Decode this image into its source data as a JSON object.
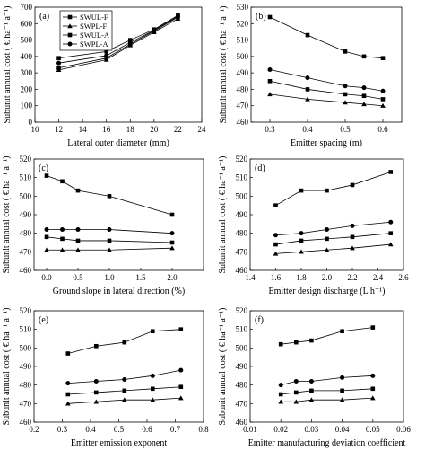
{
  "legend": [
    "SWUL-F",
    "SWPL-F",
    "SWUL-A",
    "SWPL-A"
  ],
  "chart_data": [
    {
      "type": "line",
      "panel": "(a)",
      "xlabel": "Lateral outer diameter (mm)",
      "ylabel": "Subunit annual cost ( € ha⁻¹ a⁻¹)",
      "xlim": [
        10,
        24
      ],
      "ylim": [
        0,
        700
      ],
      "xticks": [
        10,
        12,
        14,
        16,
        18,
        20,
        22,
        24
      ],
      "yticks": [
        0,
        100,
        200,
        300,
        400,
        500,
        600,
        700
      ],
      "legend_position": "top-left",
      "series": [
        {
          "name": "SWUL-F",
          "marker": "square",
          "x": [
            12,
            16,
            18,
            20,
            22
          ],
          "y": [
            330,
            390,
            475,
            555,
            640
          ]
        },
        {
          "name": "SWPL-F",
          "marker": "triangle",
          "x": [
            12,
            16,
            18,
            20,
            22
          ],
          "y": [
            318,
            380,
            468,
            548,
            630
          ]
        },
        {
          "name": "SWUL-A",
          "marker": "square",
          "x": [
            12,
            16,
            18,
            20,
            22
          ],
          "y": [
            390,
            430,
            500,
            565,
            650
          ]
        },
        {
          "name": "SWPL-A",
          "marker": "circle",
          "x": [
            12,
            16,
            18,
            20,
            22
          ],
          "y": [
            360,
            405,
            485,
            560,
            645
          ]
        }
      ]
    },
    {
      "type": "line",
      "panel": "(b)",
      "xlabel": "Emitter spacing (m)",
      "ylabel": "Subunit annual cost ( € ha⁻¹ a⁻¹)",
      "xlim": [
        0.25,
        0.65
      ],
      "ylim": [
        460,
        530
      ],
      "xticks": [
        0.3,
        0.4,
        0.5,
        0.6
      ],
      "yticks": [
        460,
        470,
        480,
        490,
        500,
        510,
        520,
        530
      ],
      "series": [
        {
          "name": "SWUL-F",
          "marker": "square",
          "x": [
            0.3,
            0.4,
            0.5,
            0.55,
            0.6
          ],
          "y": [
            485,
            480,
            477,
            476,
            474
          ]
        },
        {
          "name": "SWPL-F",
          "marker": "triangle",
          "x": [
            0.3,
            0.4,
            0.5,
            0.55,
            0.6
          ],
          "y": [
            477,
            474,
            472,
            471,
            470
          ]
        },
        {
          "name": "SWUL-A",
          "marker": "square",
          "x": [
            0.3,
            0.4,
            0.5,
            0.55,
            0.6
          ],
          "y": [
            524,
            513,
            503,
            500,
            499
          ]
        },
        {
          "name": "SWPL-A",
          "marker": "circle",
          "x": [
            0.3,
            0.4,
            0.5,
            0.55,
            0.6
          ],
          "y": [
            492,
            487,
            482,
            481,
            479
          ]
        }
      ]
    },
    {
      "type": "line",
      "panel": "(c)",
      "xlabel": "Ground slope in lateral direction (%)",
      "ylabel": "Subunit annual cost ( € ha⁻¹ a⁻¹)",
      "xlim": [
        -0.2,
        2.5
      ],
      "ylim": [
        460,
        520
      ],
      "xticks": [
        0.0,
        0.5,
        1.0,
        1.5,
        2.0
      ],
      "yticks": [
        460,
        470,
        480,
        490,
        500,
        510,
        520
      ],
      "series": [
        {
          "name": "SWUL-F",
          "marker": "square",
          "x": [
            0,
            0.25,
            0.5,
            1.0,
            2.0
          ],
          "y": [
            478,
            477,
            476,
            476,
            475
          ]
        },
        {
          "name": "SWPL-F",
          "marker": "triangle",
          "x": [
            0,
            0.25,
            0.5,
            1.0,
            2.0
          ],
          "y": [
            471,
            471,
            471,
            471,
            472
          ]
        },
        {
          "name": "SWUL-A",
          "marker": "square",
          "x": [
            0,
            0.25,
            0.5,
            1.0,
            2.0
          ],
          "y": [
            511,
            508,
            503,
            500,
            490
          ]
        },
        {
          "name": "SWPL-A",
          "marker": "circle",
          "x": [
            0,
            0.25,
            0.5,
            1.0,
            2.0
          ],
          "y": [
            482,
            482,
            482,
            482,
            480
          ]
        }
      ]
    },
    {
      "type": "line",
      "panel": "(d)",
      "xlabel": "Emitter design discharge (L h⁻¹)",
      "ylabel": "Subunit annual cost ( € ha⁻¹ a⁻¹)",
      "xlim": [
        1.4,
        2.6
      ],
      "ylim": [
        460,
        520
      ],
      "xticks": [
        1.4,
        1.6,
        1.8,
        2.0,
        2.2,
        2.4,
        2.6
      ],
      "yticks": [
        460,
        470,
        480,
        490,
        500,
        510,
        520
      ],
      "series": [
        {
          "name": "SWUL-F",
          "marker": "square",
          "x": [
            1.6,
            1.8,
            2.0,
            2.2,
            2.5
          ],
          "y": [
            474,
            476,
            477,
            478,
            480
          ]
        },
        {
          "name": "SWPL-F",
          "marker": "triangle",
          "x": [
            1.6,
            1.8,
            2.0,
            2.2,
            2.5
          ],
          "y": [
            469,
            470,
            471,
            472,
            474
          ]
        },
        {
          "name": "SWUL-A",
          "marker": "square",
          "x": [
            1.6,
            1.8,
            2.0,
            2.2,
            2.5
          ],
          "y": [
            495,
            503,
            503,
            506,
            513
          ]
        },
        {
          "name": "SWPL-A",
          "marker": "circle",
          "x": [
            1.6,
            1.8,
            2.0,
            2.2,
            2.5
          ],
          "y": [
            479,
            480,
            482,
            484,
            486
          ]
        }
      ]
    },
    {
      "type": "line",
      "panel": "(e)",
      "xlabel": "Emitter emission exponent",
      "ylabel": "Subunit annual cost ( € ha⁻¹ a⁻¹)",
      "xlim": [
        0.2,
        0.8
      ],
      "ylim": [
        460,
        520
      ],
      "xticks": [
        0.2,
        0.3,
        0.4,
        0.5,
        0.6,
        0.7,
        0.8
      ],
      "yticks": [
        460,
        470,
        480,
        490,
        500,
        510,
        520
      ],
      "series": [
        {
          "name": "SWUL-F",
          "marker": "square",
          "x": [
            0.32,
            0.42,
            0.52,
            0.62,
            0.72
          ],
          "y": [
            475,
            476,
            477,
            478,
            479
          ]
        },
        {
          "name": "SWPL-F",
          "marker": "triangle",
          "x": [
            0.32,
            0.42,
            0.52,
            0.62,
            0.72
          ],
          "y": [
            470,
            471,
            472,
            472,
            473
          ]
        },
        {
          "name": "SWUL-A",
          "marker": "square",
          "x": [
            0.32,
            0.42,
            0.52,
            0.62,
            0.72
          ],
          "y": [
            497,
            501,
            503,
            509,
            510
          ]
        },
        {
          "name": "SWPL-A",
          "marker": "circle",
          "x": [
            0.32,
            0.42,
            0.52,
            0.62,
            0.72
          ],
          "y": [
            481,
            482,
            483,
            485,
            488
          ]
        }
      ]
    },
    {
      "type": "line",
      "panel": "(f)",
      "xlabel": "Emitter manufacturing deviation coefficient",
      "ylabel": "Subunit annual cost ( € ha⁻¹ a⁻¹)",
      "xlim": [
        0.01,
        0.06
      ],
      "ylim": [
        460,
        520
      ],
      "xticks": [
        0.01,
        0.02,
        0.03,
        0.04,
        0.05,
        0.06
      ],
      "yticks": [
        460,
        470,
        480,
        490,
        500,
        510,
        520
      ],
      "series": [
        {
          "name": "SWUL-F",
          "marker": "square",
          "x": [
            0.02,
            0.025,
            0.03,
            0.04,
            0.05
          ],
          "y": [
            475,
            476,
            477,
            477,
            478
          ]
        },
        {
          "name": "SWPL-F",
          "marker": "triangle",
          "x": [
            0.02,
            0.025,
            0.03,
            0.04,
            0.05
          ],
          "y": [
            471,
            471,
            472,
            472,
            473
          ]
        },
        {
          "name": "SWUL-A",
          "marker": "square",
          "x": [
            0.02,
            0.025,
            0.03,
            0.04,
            0.05
          ],
          "y": [
            502,
            503,
            504,
            509,
            511
          ]
        },
        {
          "name": "SWPL-A",
          "marker": "circle",
          "x": [
            0.02,
            0.025,
            0.03,
            0.04,
            0.05
          ],
          "y": [
            480,
            482,
            482,
            484,
            485
          ]
        }
      ]
    }
  ]
}
